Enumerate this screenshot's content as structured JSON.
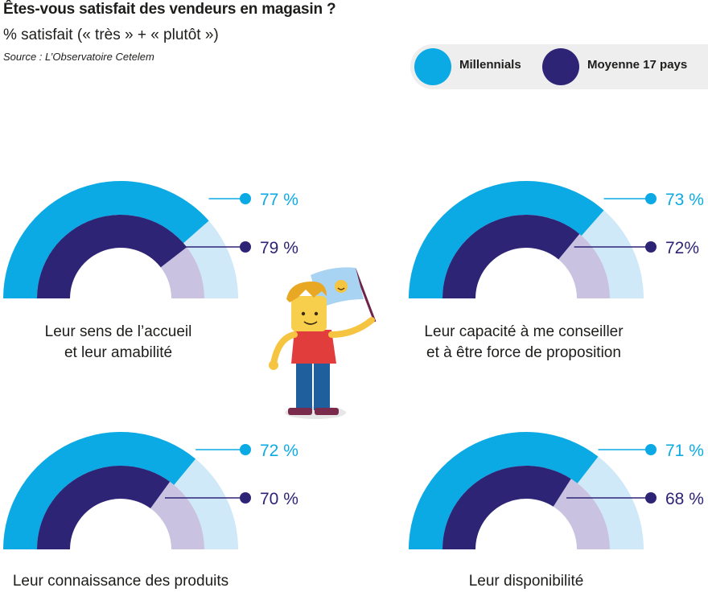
{
  "title": "Êtes-vous satisfait des vendeurs en magasin ?",
  "subtitle": "% satisfait (« très » + « plutôt »)",
  "source": "Source : L’Observatoire Cetelem",
  "colors": {
    "millennials": "#0baae4",
    "millennials_light": "#cfe9f8",
    "average": "#2e2476",
    "average_light": "#c9c3e1"
  },
  "chart_data": {
    "type": "gauge",
    "value_range": [
      0,
      100
    ],
    "legend": [
      "Millennials",
      "Moyenne 17 pays"
    ],
    "legend_placement": "top-right",
    "series": [
      {
        "name": "Millennials",
        "values": [
          77,
          73,
          72,
          71
        ]
      },
      {
        "name": "Moyenne 17 pays",
        "values": [
          79,
          72,
          70,
          68
        ]
      }
    ],
    "gauges": [
      {
        "label_lines": [
          "Leur sens de l’accueil",
          "et leur amabilité"
        ],
        "millennials": 77,
        "millennials_label": "77 %",
        "average": 79,
        "average_label": "79 %"
      },
      {
        "label_lines": [
          "Leur capacité à me conseiller",
          "et à être force de proposition"
        ],
        "millennials": 73,
        "millennials_label": "73 %",
        "average": 72,
        "average_label": "72%"
      },
      {
        "label_lines": [
          "Leur connaissance des produits"
        ],
        "millennials": 72,
        "millennials_label": "72 %",
        "average": 70,
        "average_label": "70 %"
      },
      {
        "label_lines": [
          "Leur disponibilité"
        ],
        "millennials": 71,
        "millennials_label": "71 %",
        "average": 68,
        "average_label": "68 %"
      }
    ]
  }
}
